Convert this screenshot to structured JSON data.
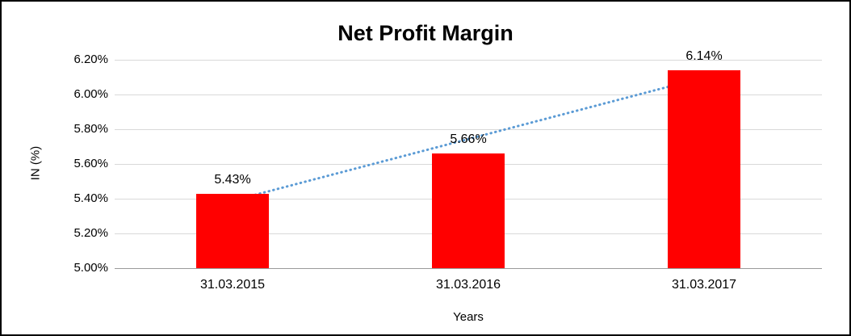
{
  "chart_data": {
    "type": "bar",
    "title": "Net Profit Margin",
    "categories": [
      "31.03.2015",
      "31.03.2016",
      "31.03.2017"
    ],
    "values": [
      5.43,
      5.66,
      6.14
    ],
    "data_labels": [
      "5.43%",
      "5.66%",
      "6.14%"
    ],
    "xlabel": "Years",
    "ylabel": "IN (%)",
    "ylim": [
      5.0,
      6.2
    ],
    "ytick_step": 0.2,
    "ytick_labels": [
      "5.00%",
      "5.20%",
      "5.40%",
      "5.60%",
      "5.80%",
      "6.00%",
      "6.20%"
    ],
    "grid": true,
    "legend": "none",
    "bar_color": "#ff0000",
    "gridline_color": "#d9d9d9",
    "trendline": {
      "type": "linear",
      "style": "dotted",
      "color": "#5b9bd5"
    }
  }
}
